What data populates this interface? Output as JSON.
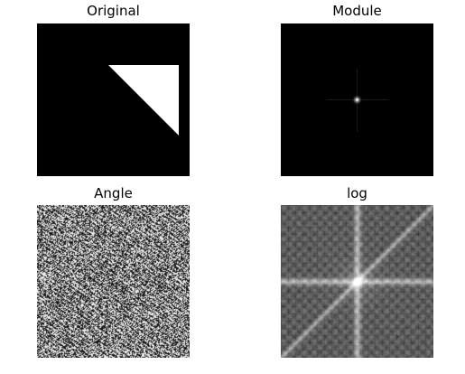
{
  "figure": {
    "panels": [
      {
        "id": "original",
        "title": "Original",
        "colormap": "gray"
      },
      {
        "id": "module",
        "title": "Module",
        "colormap": "gray"
      },
      {
        "id": "angle",
        "title": "Angle",
        "colormap": "gray"
      },
      {
        "id": "log",
        "title": "log",
        "colormap": "gray"
      }
    ]
  }
}
